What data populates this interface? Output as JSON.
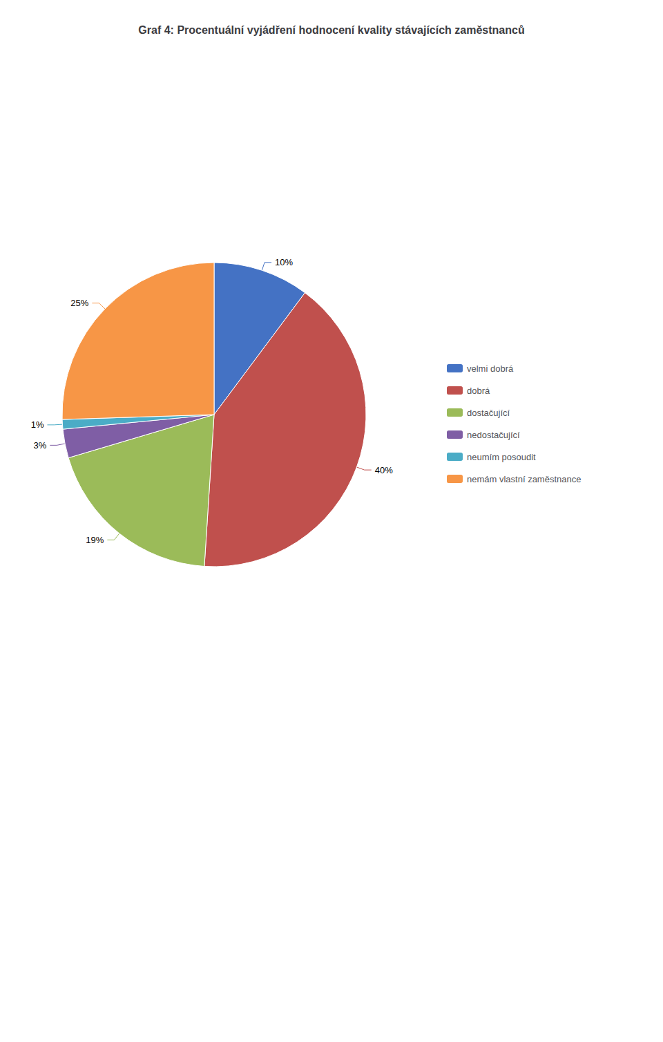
{
  "chart_data": {
    "type": "pie",
    "title": "Graf 4: Procentuální vyjádření hodnocení kvality stávajících zaměstnanců",
    "categories": [
      "velmi dobrá",
      "dobrá",
      "dostačující",
      "nedostačující",
      "neumím posoudit",
      "nemám vlastní zaměstnance"
    ],
    "values": [
      10,
      40,
      19,
      3,
      1,
      25
    ],
    "value_labels": [
      "10%",
      "40%",
      "19%",
      "3%",
      "1%",
      "25%"
    ],
    "colors": [
      "#4472C4",
      "#C0504D",
      "#9BBB59",
      "#7F5EA5",
      "#4BACC6",
      "#F79646"
    ],
    "data_labels": true,
    "legend": "right"
  }
}
